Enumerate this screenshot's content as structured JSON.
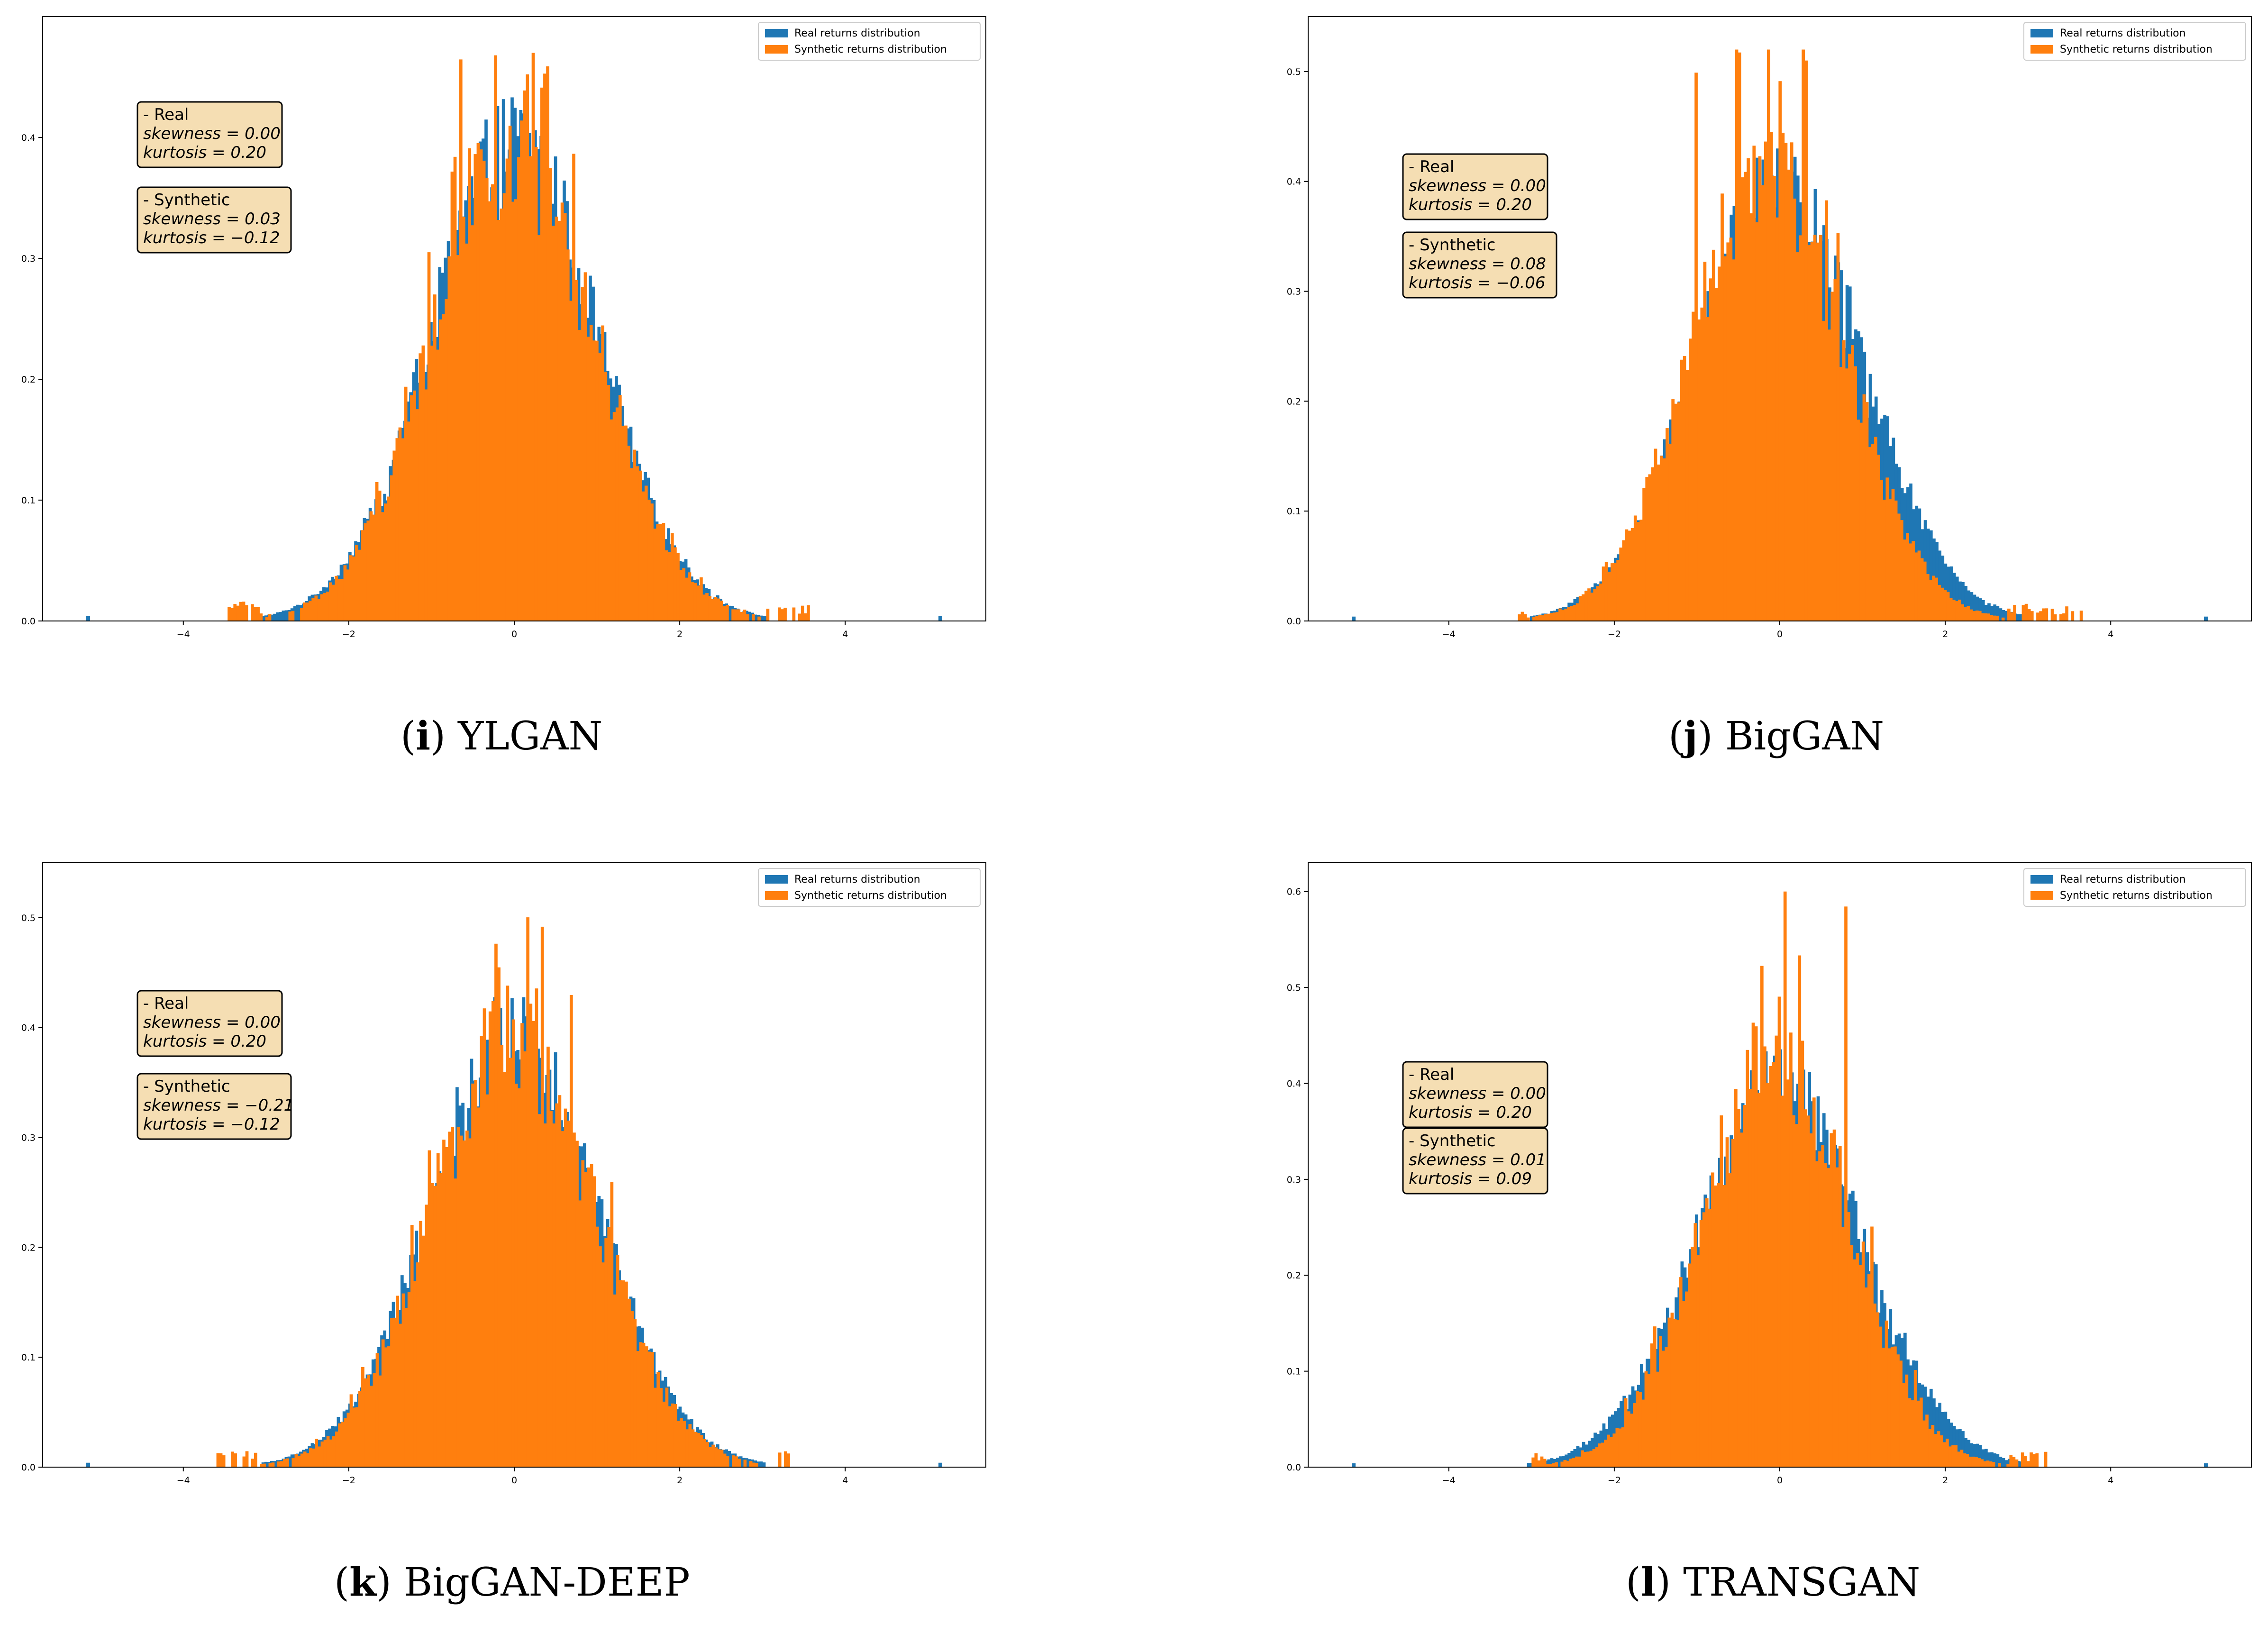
{
  "colors": {
    "real": "#1f77b4",
    "synthetic": "#ff7f0e",
    "statbox": "#f5deb3"
  },
  "legend": {
    "real": "Real returns distribution",
    "synthetic": "Synthetic returns distribution",
    "placement": "top-right"
  },
  "panels": [
    {
      "id": "i",
      "caption_letter": "i",
      "caption_model": "YLGAN",
      "real_stats": {
        "label": "- Real",
        "skewness": "skewness = 0.00",
        "kurtosis": "kurtosis = 0.20"
      },
      "synth_stats": {
        "label": "- Synthetic",
        "skewness": "skewness = 0.03",
        "kurtosis": "kurtosis = −0.12"
      }
    },
    {
      "id": "j",
      "caption_letter": "j",
      "caption_model": "BigGAN",
      "real_stats": {
        "label": "- Real",
        "skewness": "skewness = 0.00",
        "kurtosis": "kurtosis = 0.20"
      },
      "synth_stats": {
        "label": "- Synthetic",
        "skewness": "skewness = 0.08",
        "kurtosis": "kurtosis = −0.06"
      }
    },
    {
      "id": "k",
      "caption_letter": "k",
      "caption_model": "BigGAN-DEEP",
      "real_stats": {
        "label": "- Real",
        "skewness": "skewness = 0.00",
        "kurtosis": "kurtosis = 0.20"
      },
      "synth_stats": {
        "label": "- Synthetic",
        "skewness": "skewness = −0.21",
        "kurtosis": "kurtosis = −0.12"
      }
    },
    {
      "id": "l",
      "caption_letter": "l",
      "caption_model": "TRANSGAN",
      "real_stats": {
        "label": "- Real",
        "skewness": "skewness = 0.00",
        "kurtosis": "kurtosis = 0.20"
      },
      "synth_stats": {
        "label": "- Synthetic",
        "skewness": "skewness = 0.01",
        "kurtosis": "kurtosis = 0.09"
      }
    }
  ],
  "chart_data": [
    {
      "type": "bar",
      "title": "YLGAN",
      "xlim": [
        -5.7,
        5.7
      ],
      "ylim": [
        0,
        0.5
      ],
      "xticks": [
        -4,
        -2,
        0,
        2,
        4
      ],
      "yticks": [
        0.0,
        0.1,
        0.2,
        0.3,
        0.4
      ],
      "series": [
        {
          "name": "Real returns distribution",
          "mean": 0.0,
          "sd": 1.0,
          "peak": 0.4,
          "outliers": [
            -5.15,
            5.15
          ]
        },
        {
          "name": "Synthetic returns distribution",
          "mean": 0.0,
          "sd": 0.98,
          "peak": 0.405,
          "max": 0.47,
          "range": [
            -3.5,
            3.6
          ]
        }
      ]
    },
    {
      "type": "bar",
      "title": "BigGAN",
      "xlim": [
        -5.7,
        5.7
      ],
      "ylim": [
        0,
        0.55
      ],
      "xticks": [
        -4,
        -2,
        0,
        2,
        4
      ],
      "yticks": [
        0.0,
        0.1,
        0.2,
        0.3,
        0.4,
        0.5
      ],
      "series": [
        {
          "name": "Real returns distribution",
          "mean": 0.0,
          "sd": 1.0,
          "peak": 0.4,
          "outliers": [
            -5.15,
            5.15
          ]
        },
        {
          "name": "Synthetic returns distribution",
          "mean": -0.15,
          "sd": 0.92,
          "peak": 0.43,
          "max": 0.52,
          "range": [
            -3.2,
            3.7
          ]
        }
      ]
    },
    {
      "type": "bar",
      "title": "BigGAN-DEEP",
      "xlim": [
        -5.7,
        5.7
      ],
      "ylim": [
        0,
        0.55
      ],
      "xticks": [
        -4,
        -2,
        0,
        2,
        4
      ],
      "yticks": [
        0.0,
        0.1,
        0.2,
        0.3,
        0.4,
        0.5
      ],
      "series": [
        {
          "name": "Real returns distribution",
          "mean": 0.0,
          "sd": 1.0,
          "peak": 0.4,
          "outliers": [
            -5.15,
            5.15
          ]
        },
        {
          "name": "Synthetic returns distribution",
          "mean": 0.0,
          "sd": 0.97,
          "peak": 0.41,
          "max": 0.52,
          "range": [
            -3.6,
            3.3
          ]
        }
      ]
    },
    {
      "type": "bar",
      "title": "TRANSGAN",
      "xlim": [
        -5.7,
        5.7
      ],
      "ylim": [
        0,
        0.63
      ],
      "xticks": [
        -4,
        -2,
        0,
        2,
        4
      ],
      "yticks": [
        0.0,
        0.1,
        0.2,
        0.3,
        0.4,
        0.5,
        0.6
      ],
      "series": [
        {
          "name": "Real returns distribution",
          "mean": 0.0,
          "sd": 1.0,
          "peak": 0.4,
          "outliers": [
            -5.15,
            5.15
          ]
        },
        {
          "name": "Synthetic returns distribution",
          "mean": -0.05,
          "sd": 0.88,
          "peak": 0.45,
          "max": 0.6,
          "range": [
            -3.0,
            3.2
          ]
        }
      ]
    }
  ]
}
